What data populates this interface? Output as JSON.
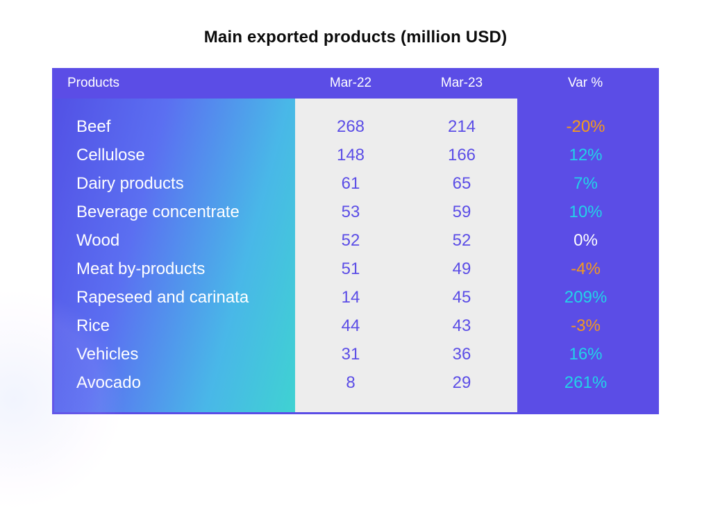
{
  "title": "Main exported products (million USD)",
  "table": {
    "type": "table",
    "header_bg": "#5b4de6",
    "header_text_color": "#ffffff",
    "products_gradient": [
      "#5251e5",
      "#5b6ff1",
      "#49b7e8",
      "#3fd2d2"
    ],
    "value_col_bg": "#ededed",
    "value_text_color": "#5b4de6",
    "var_col_bg": "#5b4de6",
    "positive_color": "#22d3e8",
    "negative_color": "#f59a1d",
    "neutral_color": "#ffffff",
    "columns": {
      "products": "Products",
      "m22": "Mar-22",
      "m23": "Mar-23",
      "var": "Var %"
    },
    "rows": [
      {
        "product": "Beef",
        "m22": "268",
        "m23": "214",
        "var": "-20%",
        "var_sign": "neg"
      },
      {
        "product": "Cellulose",
        "m22": "148",
        "m23": "166",
        "var": "12%",
        "var_sign": "pos"
      },
      {
        "product": "Dairy products",
        "m22": "61",
        "m23": "65",
        "var": "7%",
        "var_sign": "pos"
      },
      {
        "product": "Beverage concentrate",
        "m22": "53",
        "m23": "59",
        "var": "10%",
        "var_sign": "pos"
      },
      {
        "product": "Wood",
        "m22": "52",
        "m23": "52",
        "var": "0%",
        "var_sign": "neutral"
      },
      {
        "product": "Meat by-products",
        "m22": "51",
        "m23": "49",
        "var": "-4%",
        "var_sign": "neg"
      },
      {
        "product": "Rapeseed and carinata",
        "m22": "14",
        "m23": "45",
        "var": "209%",
        "var_sign": "pos"
      },
      {
        "product": "Rice",
        "m22": "44",
        "m23": "43",
        "var": "-3%",
        "var_sign": "neg"
      },
      {
        "product": "Vehicles",
        "m22": "31",
        "m23": "36",
        "var": "16%",
        "var_sign": "pos"
      },
      {
        "product": "Avocado",
        "m22": "8",
        "m23": "29",
        "var": "261%",
        "var_sign": "pos"
      }
    ],
    "font_family": "sans-serif",
    "title_fontsize": 24,
    "cell_fontsize": 24,
    "header_fontsize": 19
  }
}
